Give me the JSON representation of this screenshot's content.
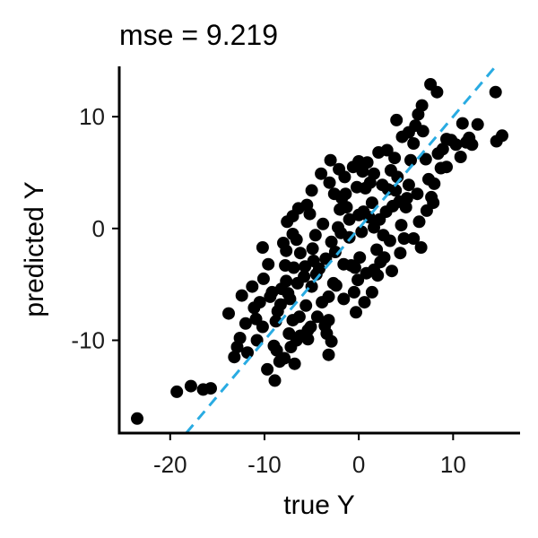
{
  "chart_data": {
    "type": "scatter",
    "title": "mse = 9.219",
    "xlabel": "true Y",
    "ylabel": "predicted Y",
    "xlim": [
      -25.4,
      17.1
    ],
    "ylim": [
      -18.3,
      14.5
    ],
    "xticks": [
      -20,
      -10,
      0,
      10
    ],
    "xtick_labels": [
      "-20",
      "-10",
      "0",
      "10"
    ],
    "yticks": [
      -10,
      0,
      10
    ],
    "ytick_labels": [
      "-10",
      "0",
      "10"
    ],
    "grid": false,
    "legend": "none",
    "point_color": "#000000",
    "reference_line": {
      "style": "dashed",
      "color": "#29abe2",
      "slope": 1,
      "intercept": 0
    },
    "series": [
      {
        "points": [
          [
            -23.5,
            -17.0
          ],
          [
            -19.3,
            -14.6
          ],
          [
            -17.8,
            -14.1
          ],
          [
            -16.5,
            -14.4
          ],
          [
            -15.7,
            -14.3
          ],
          [
            -13.2,
            -11.5
          ],
          [
            -12.9,
            -10.6
          ],
          [
            -13.8,
            -7.6
          ],
          [
            -12.6,
            -9.8
          ],
          [
            -12.0,
            -8.5
          ],
          [
            -12.4,
            -6.0
          ],
          [
            -11.3,
            -5.2
          ],
          [
            -11.1,
            -7.1
          ],
          [
            -10.8,
            -10.0
          ],
          [
            -10.5,
            -6.6
          ],
          [
            -10.1,
            -4.5
          ],
          [
            -10.2,
            -1.7
          ],
          [
            -9.6,
            -3.2
          ],
          [
            -9.2,
            -5.7
          ],
          [
            -8.7,
            -10.9
          ],
          [
            -8.9,
            -13.6
          ],
          [
            -8.4,
            -11.9
          ],
          [
            -9.7,
            -12.6
          ],
          [
            -7.9,
            -11.6
          ],
          [
            -10.2,
            -8.8
          ],
          [
            -8.8,
            -8.3
          ],
          [
            -8.6,
            -7.4
          ],
          [
            -8.2,
            -5.4
          ],
          [
            -7.8,
            -3.3
          ],
          [
            -7.3,
            -6.3
          ],
          [
            -7.0,
            -8.2
          ],
          [
            -7.4,
            -9.4
          ],
          [
            -6.8,
            -12.1
          ],
          [
            -6.6,
            -10.0
          ],
          [
            -6.3,
            -7.9
          ],
          [
            -6.2,
            -2.2
          ],
          [
            -5.8,
            -4.3
          ],
          [
            -5.6,
            -6.9
          ],
          [
            -5.4,
            -9.9
          ],
          [
            -5.1,
            -8.8
          ],
          [
            -5.0,
            -5.2
          ],
          [
            -4.8,
            -2.9
          ],
          [
            -4.6,
            -0.6
          ],
          [
            -5.2,
            1.3
          ],
          [
            -5.5,
            2.1
          ],
          [
            -5.0,
            3.4
          ],
          [
            -6.4,
            1.8
          ],
          [
            -7.0,
            1.1
          ],
          [
            -7.6,
            0.6
          ],
          [
            -7.0,
            -0.5
          ],
          [
            -8.0,
            -1.3
          ],
          [
            -6.6,
            -1.0
          ],
          [
            -4.2,
            -3.6
          ],
          [
            -3.9,
            -6.6
          ],
          [
            -3.6,
            -8.7
          ],
          [
            -3.4,
            -9.4
          ],
          [
            -3.2,
            -11.3
          ],
          [
            -2.9,
            -10.1
          ],
          [
            -2.7,
            -4.9
          ],
          [
            -2.5,
            -2.1
          ],
          [
            -2.2,
            0.1
          ],
          [
            -2.0,
            1.7
          ],
          [
            -1.8,
            2.7
          ],
          [
            -2.6,
            3.1
          ],
          [
            -3.1,
            4.1
          ],
          [
            -3.0,
            6.1
          ],
          [
            -1.5,
            4.6
          ],
          [
            -1.3,
            1.9
          ],
          [
            -1.0,
            -0.8
          ],
          [
            -0.8,
            -3.3
          ],
          [
            -0.5,
            -5.7
          ],
          [
            -0.3,
            -7.5
          ],
          [
            -0.1,
            -4.6
          ],
          [
            0.1,
            -2.6
          ],
          [
            0.3,
            -0.3
          ],
          [
            0.5,
            1.5
          ],
          [
            0.7,
            3.6
          ],
          [
            0.4,
            5.1
          ],
          [
            -0.6,
            5.5
          ],
          [
            0.0,
            6.0
          ],
          [
            0.9,
            5.9
          ],
          [
            1.2,
            4.1
          ],
          [
            1.4,
            2.3
          ],
          [
            1.6,
            0.1
          ],
          [
            1.9,
            -1.9
          ],
          [
            2.0,
            -4.2
          ],
          [
            2.3,
            -3.0
          ],
          [
            2.6,
            -0.6
          ],
          [
            2.9,
            1.5
          ],
          [
            3.1,
            3.5
          ],
          [
            3.4,
            5.2
          ],
          [
            3.8,
            6.3
          ],
          [
            4.1,
            4.6
          ],
          [
            4.3,
            2.4
          ],
          [
            4.5,
            0.3
          ],
          [
            4.8,
            -0.9
          ],
          [
            5.0,
            1.9
          ],
          [
            5.3,
            3.9
          ],
          [
            5.5,
            6.1
          ],
          [
            5.8,
            7.6
          ],
          [
            5.3,
            8.6
          ],
          [
            6.0,
            9.2
          ],
          [
            6.3,
            10.2
          ],
          [
            6.8,
            8.7
          ],
          [
            7.1,
            6.2
          ],
          [
            7.4,
            4.4
          ],
          [
            7.7,
            2.8
          ],
          [
            8.0,
            4.0
          ],
          [
            8.4,
            6.7
          ],
          [
            8.9,
            7.1
          ],
          [
            9.3,
            5.5
          ],
          [
            9.8,
            7.9
          ],
          [
            10.3,
            7.5
          ],
          [
            10.8,
            6.4
          ],
          [
            11.4,
            7.7
          ],
          [
            7.6,
            12.9
          ],
          [
            8.3,
            12.2
          ],
          [
            14.5,
            12.2
          ],
          [
            14.6,
            7.8
          ],
          [
            15.2,
            8.3
          ],
          [
            12.6,
            9.3
          ],
          [
            12.0,
            7.5
          ],
          [
            11.7,
            8.1
          ],
          [
            11.0,
            9.4
          ],
          [
            9.3,
            8.0
          ],
          [
            8.7,
            5.4
          ],
          [
            7.9,
            2.3
          ],
          [
            7.2,
            1.6
          ],
          [
            6.4,
            0.6
          ],
          [
            5.8,
            -0.9
          ],
          [
            5.1,
            2.7
          ],
          [
            6.2,
            3.1
          ],
          [
            3.3,
            -1.1
          ],
          [
            2.7,
            -2.6
          ],
          [
            1.6,
            -3.7
          ],
          [
            0.8,
            -4.0
          ],
          [
            -0.4,
            -3.5
          ],
          [
            -1.6,
            -3.2
          ],
          [
            -2.4,
            -5.1
          ],
          [
            -3.2,
            -6.1
          ],
          [
            -4.4,
            -7.9
          ],
          [
            -5.4,
            -9.1
          ],
          [
            -6.2,
            -9.6
          ],
          [
            -7.2,
            -10.6
          ],
          [
            -9.0,
            -10.5
          ],
          [
            -8.3,
            -6.8
          ],
          [
            -7.5,
            -5.8
          ],
          [
            -6.5,
            -4.9
          ],
          [
            -5.7,
            -3.4
          ],
          [
            -4.5,
            -4.1
          ],
          [
            -3.5,
            -2.7
          ],
          [
            -2.9,
            -1.2
          ],
          [
            -1.9,
            -0.4
          ],
          [
            -1.0,
            0.8
          ],
          [
            0.0,
            1.2
          ],
          [
            1.1,
            1.0
          ],
          [
            2.2,
            0.8
          ],
          [
            3.6,
            2.0
          ],
          [
            3.9,
            3.4
          ],
          [
            2.5,
            3.9
          ],
          [
            1.6,
            4.9
          ],
          [
            -0.2,
            3.7
          ],
          [
            -1.4,
            3.1
          ],
          [
            -3.8,
            0.4
          ],
          [
            -4.9,
            -1.8
          ],
          [
            -6.9,
            -3.5
          ],
          [
            -7.7,
            -4.7
          ],
          [
            -9.4,
            -6.1
          ],
          [
            -10.9,
            -8.1
          ],
          [
            -11.8,
            -11.1
          ],
          [
            -3.2,
            -8.2
          ],
          [
            -1.6,
            -6.3
          ],
          [
            0.6,
            -6.6
          ],
          [
            1.4,
            -5.7
          ],
          [
            3.5,
            -3.8
          ],
          [
            4.4,
            -2.2
          ],
          [
            6.6,
            -1.7
          ],
          [
            2.1,
            6.8
          ],
          [
            3.0,
            7.0
          ],
          [
            4.6,
            8.2
          ],
          [
            4.0,
            9.7
          ],
          [
            6.7,
            11.0
          ],
          [
            -4.0,
            4.9
          ],
          [
            -2.1,
            5.3
          ],
          [
            -7.7,
            -2.0
          ]
        ]
      }
    ]
  }
}
